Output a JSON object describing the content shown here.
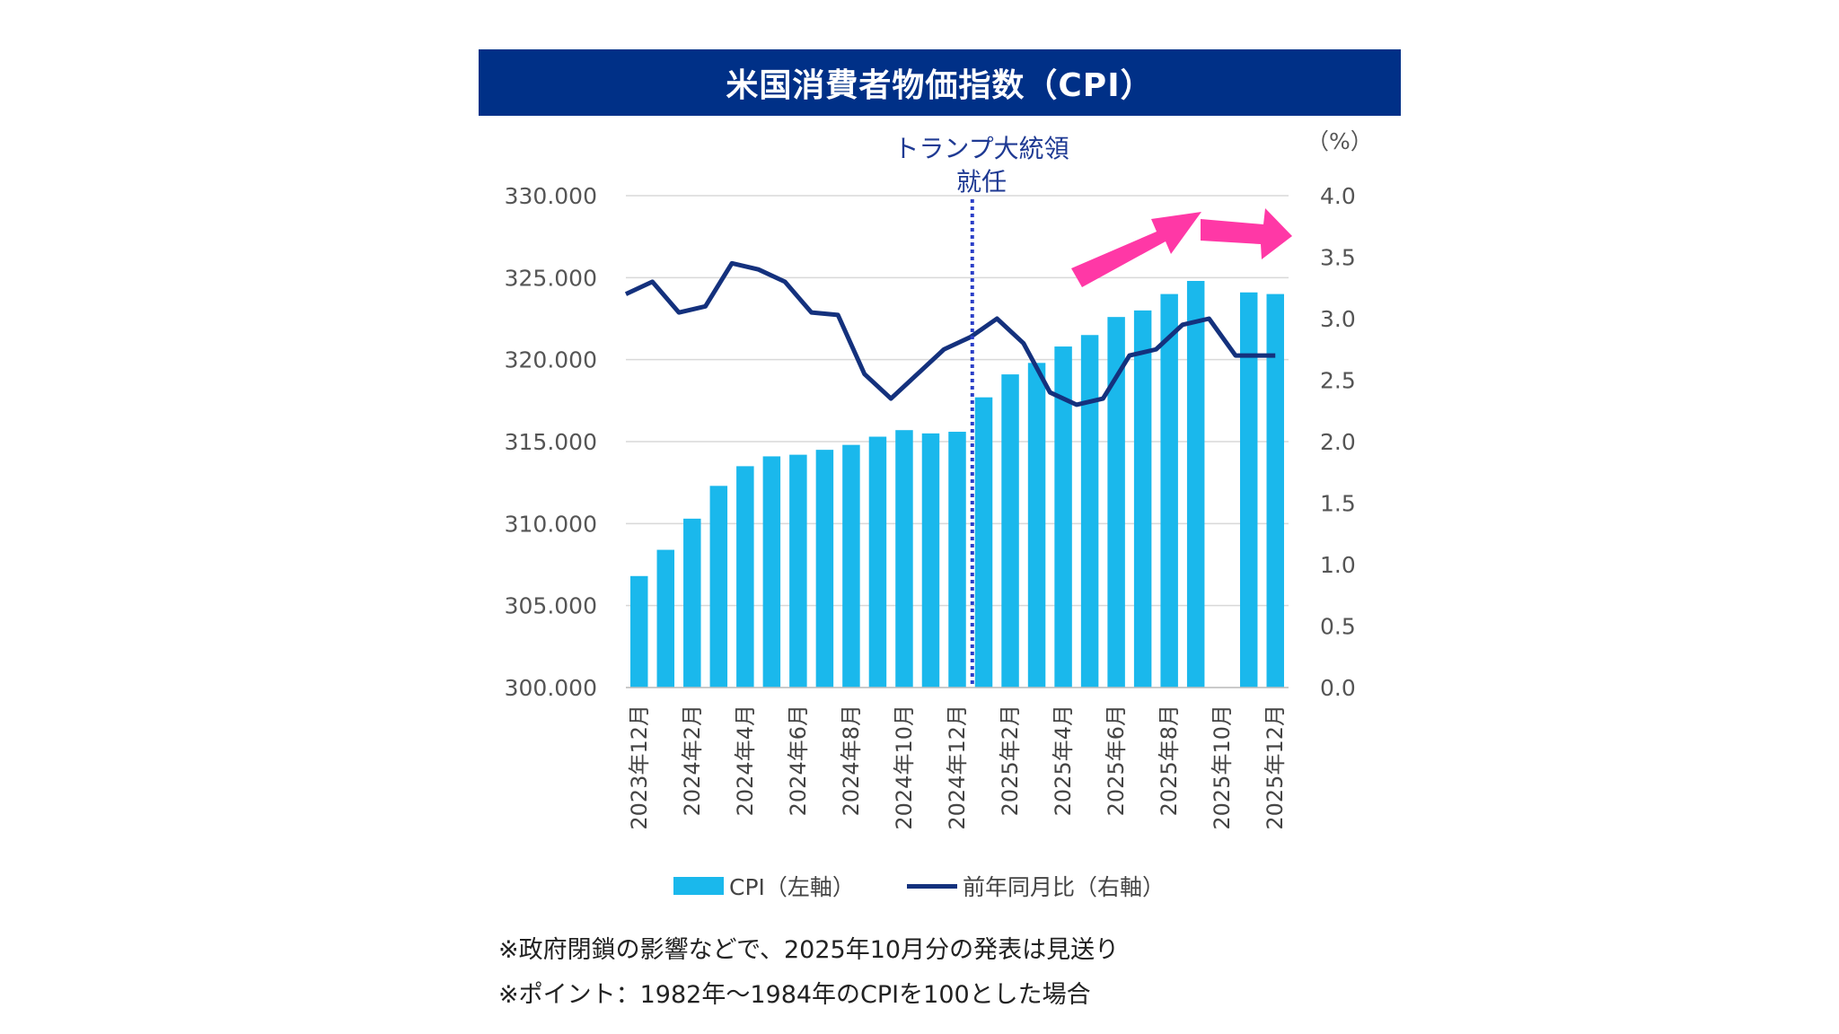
{
  "header": {
    "title": "米国消費者物価指数（CPI）"
  },
  "chart_data": {
    "type": "bar+line",
    "categories": [
      "2023年12月",
      "2024年1月",
      "2024年2月",
      "2024年3月",
      "2024年4月",
      "2024年5月",
      "2024年6月",
      "2024年7月",
      "2024年8月",
      "2024年9月",
      "2024年10月",
      "2024年11月",
      "2024年12月",
      "2025年1月",
      "2025年2月",
      "2025年3月",
      "2025年4月",
      "2025年5月",
      "2025年6月",
      "2025年7月",
      "2025年8月",
      "2025年9月",
      "2025年10月",
      "2025年11月",
      "2025年12月"
    ],
    "tick_labels": [
      "2023年12月",
      "2024年2月",
      "2024年4月",
      "2024年6月",
      "2024年8月",
      "2024年10月",
      "2024年12月",
      "2025年2月",
      "2025年4月",
      "2025年6月",
      "2025年8月",
      "2025年10月",
      "2025年12月"
    ],
    "series": [
      {
        "name": "CPI（左軸）",
        "type": "bar",
        "axis": "left",
        "color": "#1ab8ec",
        "values": [
          306.8,
          308.4,
          310.3,
          312.3,
          313.5,
          314.1,
          314.2,
          314.5,
          314.8,
          315.3,
          315.7,
          315.5,
          315.6,
          317.7,
          319.1,
          319.8,
          320.8,
          321.5,
          322.6,
          323.0,
          324.0,
          324.8,
          null,
          324.1,
          324.0
        ]
      },
      {
        "name": "前年同月比（右軸）",
        "type": "line",
        "axis": "right",
        "color": "#14317d",
        "values": [
          3.2,
          3.3,
          3.05,
          3.1,
          3.45,
          3.4,
          3.3,
          3.05,
          3.03,
          2.55,
          2.35,
          2.55,
          2.75,
          2.85,
          3.0,
          2.8,
          2.4,
          2.3,
          2.35,
          2.7,
          2.75,
          2.95,
          3.0,
          2.7,
          2.7
        ]
      }
    ],
    "left_axis": {
      "ylim": [
        300,
        330
      ],
      "ticks": [
        "300.000",
        "305.000",
        "310.000",
        "315.000",
        "320.000",
        "325.000",
        "330.000"
      ]
    },
    "right_axis": {
      "ylim": [
        0,
        4
      ],
      "unit": "（%）",
      "ticks": [
        "0.0",
        "0.5",
        "1.0",
        "1.5",
        "2.0",
        "2.5",
        "3.0",
        "3.5",
        "4.0"
      ]
    },
    "annotation": {
      "lines": [
        "トランプ大統領",
        "就任"
      ],
      "after_category": "2025年1月",
      "color": "#2b3fc7"
    },
    "arrows": {
      "color": "#ff38a6"
    },
    "legend": [
      "CPI（左軸）",
      "前年同月比（右軸）"
    ]
  },
  "notes": [
    "※政府閉鎖の影響などで、2025年10月分の発表は見送り",
    "※ポイント：1982年〜1984年のCPIを100とした場合"
  ]
}
